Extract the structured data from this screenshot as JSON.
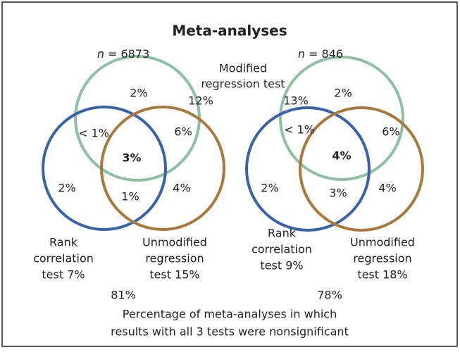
{
  "title": "Meta-analyses",
  "shared_label": {
    "modified": [
      "Modified",
      "regression test"
    ]
  },
  "diagrams": [
    {
      "n_symbol": "n",
      "n_text": "= 6873",
      "modified_pct": "12%",
      "regions": {
        "only_modified": "2%",
        "modified_rank": "< 1%",
        "modified_unmodified": "6%",
        "all_three": "3%",
        "only_rank": "2%",
        "rank_unmodified": "1%",
        "only_unmodified": "4%"
      },
      "rank_label": [
        "Rank",
        "correlation",
        "test 7%"
      ],
      "unmodified_label": [
        "Unmodified",
        "regression",
        "test 15%"
      ],
      "outside": "81%"
    },
    {
      "n_symbol": "n",
      "n_text": "= 846",
      "modified_pct": "13%",
      "regions": {
        "only_modified": "2%",
        "modified_rank": "< 1%",
        "modified_unmodified": "6%",
        "all_three": "4%",
        "only_rank": "2%",
        "rank_unmodified": "3%",
        "only_unmodified": "4%"
      },
      "rank_label": [
        "Rank",
        "correlation",
        "test 9%"
      ],
      "unmodified_label": [
        "Unmodified",
        "regression",
        "test 18%"
      ],
      "outside": "78%"
    }
  ],
  "footnote": [
    "Percentage of meta-analyses in which",
    "results with all 3 tests were nonsignificant"
  ]
}
